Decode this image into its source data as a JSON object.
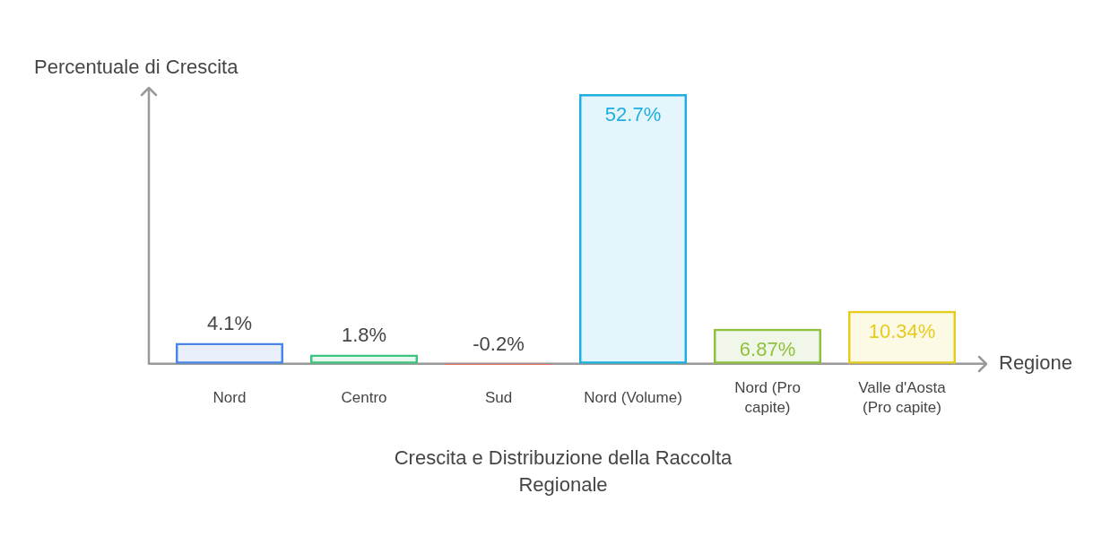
{
  "chart_data": {
    "type": "bar",
    "title": "Crescita e Distribuzione della Raccolta Regionale",
    "xlabel": "Regione",
    "ylabel": "Percentuale di Crescita",
    "categories": [
      "Nord",
      "Centro",
      "Sud",
      "Nord (Volume)",
      "Nord (Pro capite)",
      "Valle d'Aosta (Pro capite)"
    ],
    "values": [
      4.1,
      1.8,
      -0.2,
      52.7,
      6.87,
      10.34
    ],
    "value_labels": [
      "4.1%",
      "1.8%",
      "-0.2%",
      "52.7%",
      "6.87%",
      "10.34%"
    ],
    "colors": [
      "#4a86e8",
      "#3ec47e",
      "#e06c5a",
      "#1eaee0",
      "#8fc13e",
      "#e6cc1f"
    ]
  }
}
